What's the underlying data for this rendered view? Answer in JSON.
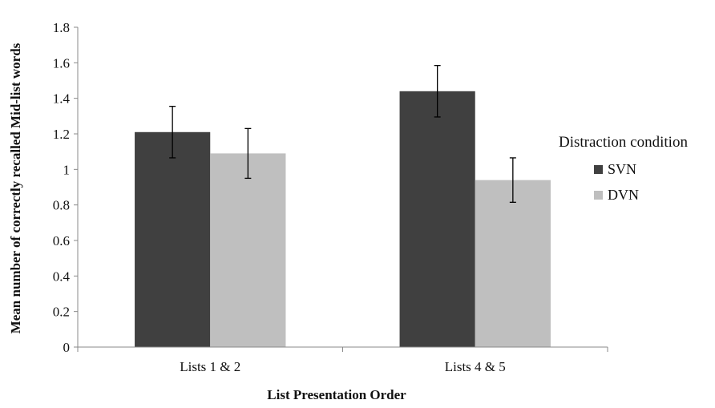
{
  "chart_data": {
    "type": "bar",
    "categories": [
      "Lists 1 & 2",
      "Lists 4 & 5"
    ],
    "series": [
      {
        "name": "SVN",
        "values": [
          1.21,
          1.44
        ],
        "errors": [
          0.145,
          0.145
        ],
        "color": "#404040"
      },
      {
        "name": "DVN",
        "values": [
          1.09,
          0.94
        ],
        "errors": [
          0.14,
          0.125
        ],
        "color": "#bfbfbf"
      }
    ],
    "title": "",
    "xlabel": "List Presentation Order",
    "ylabel": "Mean number  of correctly recalled Mid-list  words",
    "ylim": [
      0,
      1.8
    ],
    "yticks": [
      0,
      0.2,
      0.4,
      0.6,
      0.8,
      1,
      1.2,
      1.4,
      1.6,
      1.8
    ],
    "ytick_labels": [
      "0",
      "0.2",
      "0.4",
      "0.6",
      "0.8",
      "1",
      "1.2",
      "1.4",
      "1.6",
      "1.8"
    ],
    "grid": false,
    "legend": {
      "title": "Distraction condition",
      "placement": "right"
    }
  }
}
